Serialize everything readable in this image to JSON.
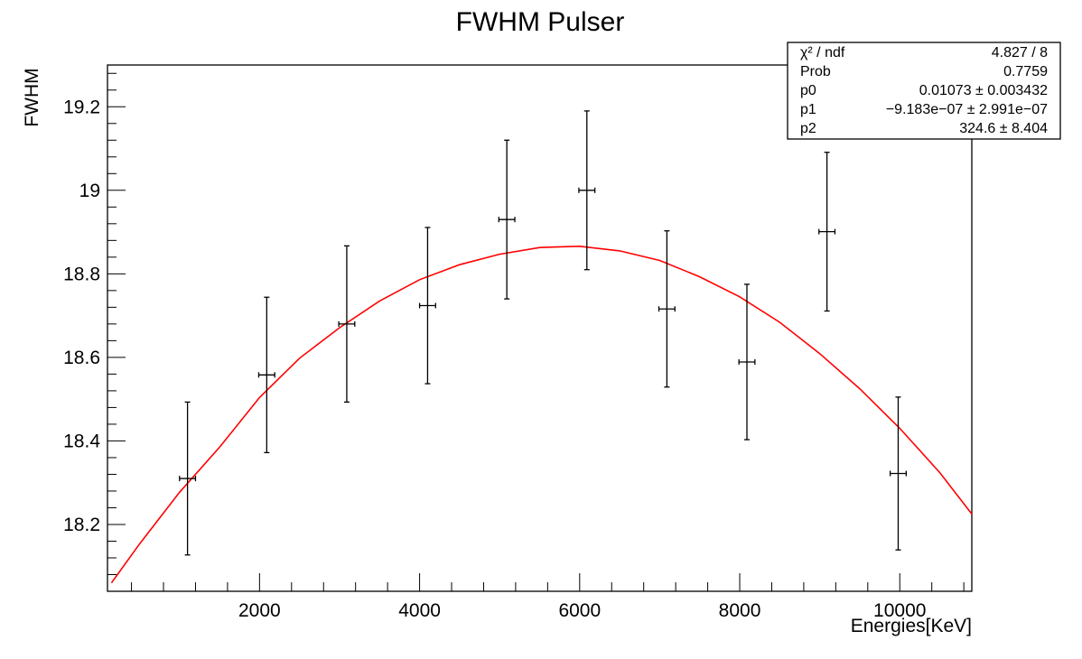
{
  "chart_data": {
    "type": "scatter",
    "title": "FWHM Pulser",
    "xlabel": "Energies[KeV]",
    "ylabel": "FWHM",
    "xlim": [
      100,
      10900
    ],
    "ylim": [
      18.04,
      19.3
    ],
    "x_ticks": [
      2000,
      4000,
      6000,
      8000,
      10000
    ],
    "x_tick_labels": [
      "2000",
      "4000",
      "6000",
      "8000",
      "10000"
    ],
    "y_ticks": [
      18.2,
      18.4,
      18.6,
      18.8,
      19.0,
      19.2
    ],
    "y_tick_labels": [
      "18.2",
      "18.4",
      "18.6",
      "18.8",
      "19",
      "19.2"
    ],
    "grid": false,
    "series": [
      {
        "points": [
          {
            "x": 1100,
            "y": 18.31,
            "xerr": 100,
            "yerr": 0.183
          },
          {
            "x": 2090,
            "y": 18.558,
            "xerr": 100,
            "yerr": 0.186
          },
          {
            "x": 3090,
            "y": 18.68,
            "xerr": 100,
            "yerr": 0.187
          },
          {
            "x": 4100,
            "y": 18.724,
            "xerr": 100,
            "yerr": 0.187
          },
          {
            "x": 5090,
            "y": 18.93,
            "xerr": 100,
            "yerr": 0.19
          },
          {
            "x": 6090,
            "y": 19.0,
            "xerr": 100,
            "yerr": 0.19
          },
          {
            "x": 7090,
            "y": 18.716,
            "xerr": 100,
            "yerr": 0.187
          },
          {
            "x": 8090,
            "y": 18.589,
            "xerr": 100,
            "yerr": 0.186
          },
          {
            "x": 9090,
            "y": 18.901,
            "xerr": 100,
            "yerr": 0.19
          },
          {
            "x": 9980,
            "y": 18.322,
            "xerr": 100,
            "yerr": 0.183
          }
        ]
      }
    ],
    "fit": {
      "color": "#ff0000",
      "x_range": [
        150,
        10900
      ],
      "curve": [
        {
          "x": 150,
          "y": 18.06
        },
        {
          "x": 500,
          "y": 18.153
        },
        {
          "x": 1000,
          "y": 18.277
        },
        {
          "x": 1500,
          "y": 18.385
        },
        {
          "x": 2000,
          "y": 18.504
        },
        {
          "x": 2500,
          "y": 18.598
        },
        {
          "x": 3000,
          "y": 18.671
        },
        {
          "x": 3500,
          "y": 18.735
        },
        {
          "x": 4000,
          "y": 18.786
        },
        {
          "x": 4500,
          "y": 18.822
        },
        {
          "x": 5000,
          "y": 18.847
        },
        {
          "x": 5500,
          "y": 18.863
        },
        {
          "x": 6000,
          "y": 18.866
        },
        {
          "x": 6500,
          "y": 18.855
        },
        {
          "x": 7000,
          "y": 18.832
        },
        {
          "x": 7500,
          "y": 18.793
        },
        {
          "x": 8000,
          "y": 18.745
        },
        {
          "x": 8500,
          "y": 18.684
        },
        {
          "x": 9000,
          "y": 18.609
        },
        {
          "x": 9500,
          "y": 18.525
        },
        {
          "x": 10000,
          "y": 18.43
        },
        {
          "x": 10500,
          "y": 18.324
        },
        {
          "x": 10900,
          "y": 18.225
        }
      ]
    },
    "stats_box": {
      "placement": "top-right",
      "rows": [
        {
          "label": "χ² / ndf",
          "value": "4.827 / 8"
        },
        {
          "label": "Prob",
          "value": "0.7759"
        },
        {
          "label": "p0",
          "value": "0.01073 ± 0.003432"
        },
        {
          "label": "p1",
          "value": "−9.183e−07 ± 2.991e−07"
        },
        {
          "label": "p2",
          "value": "324.6 ± 8.404"
        }
      ]
    }
  }
}
